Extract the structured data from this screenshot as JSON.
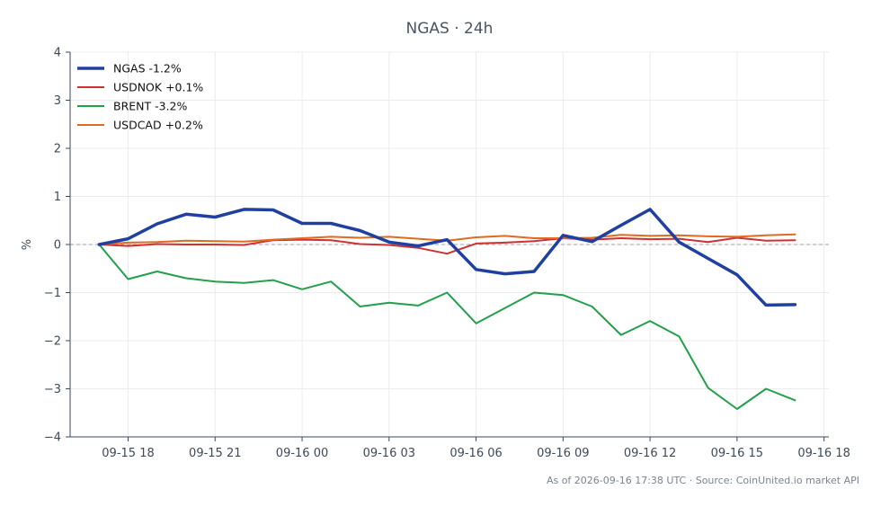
{
  "chart_data": {
    "type": "line",
    "title": "NGAS · 24h",
    "ylabel": "%",
    "xlabel": "",
    "ylim": [
      -4,
      4
    ],
    "yticks": [
      4,
      3,
      2,
      1,
      0,
      -1,
      -2,
      -3,
      -4
    ],
    "ytick_labels": [
      "4",
      "3",
      "2",
      "1",
      "0",
      "−1",
      "−2",
      "−3",
      "−4"
    ],
    "xlim": [
      "2026-09-15 16:00",
      "2026-09-16 18:10"
    ],
    "xticks": [
      "2026-09-15 18:00",
      "2026-09-15 21:00",
      "2026-09-16 00:00",
      "2026-09-16 03:00",
      "2026-09-16 06:00",
      "2026-09-16 09:00",
      "2026-09-16 12:00",
      "2026-09-16 15:00",
      "2026-09-16 18:00"
    ],
    "xtick_labels": [
      "09-15 18",
      "09-15 21",
      "09-16 00",
      "09-16 03",
      "09-16 06",
      "09-16 09",
      "09-16 12",
      "09-16 15",
      "09-16 18"
    ],
    "x": [
      "2026-09-15 17:00",
      "2026-09-15 18:00",
      "2026-09-15 19:00",
      "2026-09-15 20:00",
      "2026-09-15 21:00",
      "2026-09-15 22:00",
      "2026-09-15 23:00",
      "2026-09-16 00:00",
      "2026-09-16 01:00",
      "2026-09-16 02:00",
      "2026-09-16 03:00",
      "2026-09-16 04:00",
      "2026-09-16 05:00",
      "2026-09-16 06:00",
      "2026-09-16 07:00",
      "2026-09-16 08:00",
      "2026-09-16 09:00",
      "2026-09-16 10:00",
      "2026-09-16 11:00",
      "2026-09-16 12:00",
      "2026-09-16 13:00",
      "2026-09-16 14:00",
      "2026-09-16 15:00",
      "2026-09-16 16:00",
      "2026-09-16 17:00"
    ],
    "series": [
      {
        "name": "NGAS -1.2%",
        "color": "#2040a0",
        "width": 3.5,
        "values": [
          0,
          0.12,
          0.43,
          0.63,
          0.57,
          0.73,
          0.72,
          0.44,
          0.44,
          0.29,
          0.05,
          -0.03,
          0.1,
          -0.52,
          -0.61,
          -0.56,
          0.19,
          0.06,
          0.4,
          0.73,
          0.05,
          -0.29,
          -0.63,
          -1.26,
          -1.25
        ]
      },
      {
        "name": "USDNOK +0.1%",
        "color": "#d03030",
        "width": 2,
        "values": [
          0,
          -0.03,
          0.01,
          0.0,
          0.0,
          -0.01,
          0.09,
          0.1,
          0.09,
          0.01,
          -0.01,
          -0.07,
          -0.19,
          0.02,
          0.04,
          0.07,
          0.13,
          0.1,
          0.13,
          0.11,
          0.12,
          0.05,
          0.14,
          0.08,
          0.09
        ]
      },
      {
        "name": "BRENT -3.2%",
        "color": "#22a04a",
        "width": 2,
        "values": [
          0,
          -0.72,
          -0.56,
          -0.7,
          -0.77,
          -0.8,
          -0.74,
          -0.93,
          -0.77,
          -1.29,
          -1.21,
          -1.27,
          -1.0,
          -1.64,
          -1.32,
          -1.0,
          -1.05,
          -1.29,
          -1.88,
          -1.59,
          -1.91,
          -2.98,
          -3.42,
          -3.0,
          -3.24
        ]
      },
      {
        "name": "USDCAD +0.2%",
        "color": "#e06a20",
        "width": 2,
        "values": [
          0,
          0.04,
          0.05,
          0.08,
          0.07,
          0.06,
          0.1,
          0.13,
          0.16,
          0.14,
          0.16,
          0.12,
          0.08,
          0.15,
          0.18,
          0.13,
          0.13,
          0.14,
          0.2,
          0.18,
          0.19,
          0.17,
          0.16,
          0.19,
          0.21
        ]
      }
    ],
    "zero_line": true,
    "grid": true,
    "legend_position": "top-left"
  },
  "footer": {
    "source": "As of 2026-09-16 17:38 UTC · Source: CoinUnited.io market API"
  }
}
